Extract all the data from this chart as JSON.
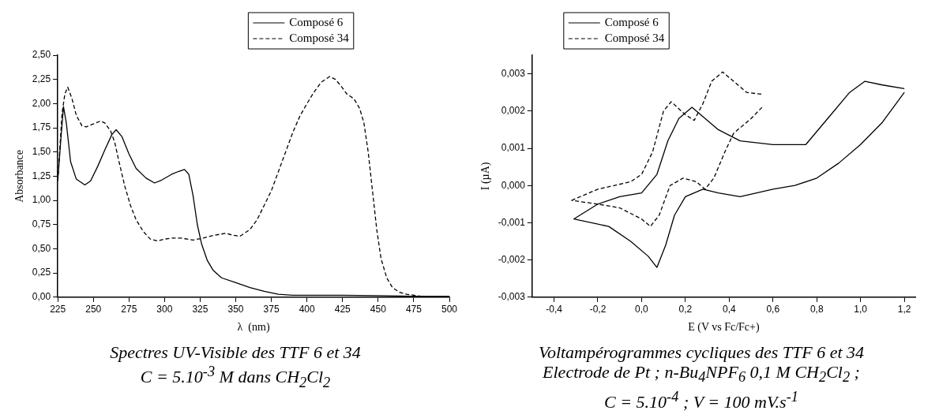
{
  "chart_data": [
    {
      "type": "line",
      "xlabel": "λ  (nm)",
      "ylabel": "Absorbance",
      "xlim": [
        225,
        500
      ],
      "ylim": [
        0,
        2.5
      ],
      "xticks": [
        225,
        250,
        275,
        300,
        325,
        350,
        375,
        400,
        425,
        450,
        475,
        500
      ],
      "yticks": [
        {
          "value": 0,
          "label": "0,00"
        },
        {
          "value": 0.25,
          "label": "0,25"
        },
        {
          "value": 0.5,
          "label": "0,50"
        },
        {
          "value": 0.75,
          "label": "0,75"
        },
        {
          "value": 1,
          "label": "1,00"
        },
        {
          "value": 1.25,
          "label": "1,25"
        },
        {
          "value": 1.5,
          "label": "1,50"
        },
        {
          "value": 1.75,
          "label": "1,75"
        },
        {
          "value": 2,
          "label": "2,00"
        },
        {
          "value": 2.25,
          "label": "2,25"
        },
        {
          "value": 2.5,
          "label": "2,50"
        }
      ],
      "grid": false,
      "legend": "top",
      "marker": "none",
      "annotations": [
        "Spectres UV-Visible des TTF 6 et 34",
        "C = 5.10$^{-3}$ M dans CH$_{2}$Cl$_{2}$"
      ],
      "series": [
        {
          "name": "Composé 6",
          "color": "#000000",
          "line_style": "solid",
          "x": [
            225,
            227,
            229,
            231,
            234,
            238,
            244,
            248,
            253,
            258,
            263,
            266,
            270,
            275,
            280,
            287,
            293,
            298,
            305,
            310,
            314,
            317,
            320,
            323,
            326,
            330,
            334,
            340,
            350,
            360,
            370,
            380,
            390,
            400,
            425,
            450,
            475,
            500
          ],
          "values": [
            1.2,
            1.6,
            1.97,
            1.8,
            1.4,
            1.22,
            1.16,
            1.2,
            1.35,
            1.52,
            1.68,
            1.73,
            1.66,
            1.48,
            1.33,
            1.23,
            1.18,
            1.21,
            1.27,
            1.3,
            1.32,
            1.27,
            1.05,
            0.75,
            0.55,
            0.38,
            0.28,
            0.2,
            0.15,
            0.1,
            0.06,
            0.03,
            0.02,
            0.02,
            0.02,
            0.015,
            0.01,
            0.01
          ]
        },
        {
          "name": "Composé 34",
          "color": "#000000",
          "line_style": "dashed",
          "x": [
            225,
            228,
            230,
            232,
            235,
            238,
            242,
            245,
            250,
            255,
            258,
            262,
            265,
            268,
            272,
            276,
            280,
            285,
            290,
            295,
            300,
            305,
            312,
            320,
            327,
            335,
            343,
            348,
            353,
            360,
            365,
            370,
            375,
            380,
            385,
            390,
            395,
            400,
            405,
            410,
            416,
            420,
            424,
            428,
            433,
            437,
            440,
            443,
            446,
            449,
            452,
            456,
            460,
            465,
            470,
            480,
            490,
            500
          ],
          "values": [
            1.2,
            1.9,
            2.1,
            2.17,
            2.05,
            1.88,
            1.77,
            1.76,
            1.79,
            1.82,
            1.8,
            1.72,
            1.6,
            1.4,
            1.15,
            0.95,
            0.8,
            0.68,
            0.6,
            0.58,
            0.6,
            0.61,
            0.61,
            0.59,
            0.61,
            0.64,
            0.66,
            0.64,
            0.63,
            0.7,
            0.8,
            0.95,
            1.1,
            1.3,
            1.5,
            1.7,
            1.87,
            2.0,
            2.12,
            2.22,
            2.28,
            2.25,
            2.18,
            2.1,
            2.05,
            1.95,
            1.8,
            1.5,
            1.1,
            0.7,
            0.4,
            0.2,
            0.1,
            0.05,
            0.03,
            0.01,
            0.0,
            0.0
          ]
        }
      ]
    },
    {
      "type": "line",
      "xlabel": "E (V vs Fc/Fc+)",
      "ylabel": "I (µA)",
      "xlim": [
        -0.5,
        1.25
      ],
      "ylim": [
        -0.003,
        0.0035
      ],
      "xticks": [
        {
          "value": -0.4,
          "label": "-0,4"
        },
        {
          "value": -0.2,
          "label": "-0,2"
        },
        {
          "value": 0,
          "label": "0,0"
        },
        {
          "value": 0.2,
          "label": "0,2"
        },
        {
          "value": 0.4,
          "label": "0,4"
        },
        {
          "value": 0.6,
          "label": "0,6"
        },
        {
          "value": 0.8,
          "label": "0,8"
        },
        {
          "value": 1,
          "label": "1,0"
        },
        {
          "value": 1.2,
          "label": "1,2"
        }
      ],
      "yticks": [
        {
          "value": -0.003,
          "label": "-0,003"
        },
        {
          "value": -0.002,
          "label": "-0,002"
        },
        {
          "value": -0.001,
          "label": "-0,001"
        },
        {
          "value": 0,
          "label": "0,000"
        },
        {
          "value": 0.001,
          "label": "0,001"
        },
        {
          "value": 0.002,
          "label": "0,002"
        },
        {
          "value": 0.003,
          "label": "0,003"
        }
      ],
      "grid": false,
      "legend": "top left",
      "marker": "none",
      "annotations": [
        "Voltampérogrammes cycliques des TTF 6 et 34",
        "Electrode de Pt ; n-Bu$_{4}$NPF$_{6}$ 0,1 M CH$_{2}$Cl$_{2}$ ;",
        "C = 5.10$^{-4}$ ; V = 100 mV.s$^{-1}$"
      ],
      "series": [
        {
          "name": "Composé 6",
          "color": "#000000",
          "line_style": "solid",
          "x": [
            -0.31,
            -0.2,
            -0.1,
            0.0,
            0.07,
            0.12,
            0.17,
            0.23,
            0.27,
            0.35,
            0.45,
            0.6,
            0.75,
            0.85,
            0.95,
            1.02,
            1.1,
            1.2
          ],
          "values": [
            -0.0009,
            -0.0005,
            -0.0003,
            -0.0002,
            0.0003,
            0.0012,
            0.0018,
            0.0021,
            0.0019,
            0.0015,
            0.0012,
            0.0011,
            0.0011,
            0.0018,
            0.0025,
            0.0028,
            0.0027,
            0.0026
          ]
        },
        {
          "color": "#000000",
          "line_style": "solid",
          "x": [
            1.2,
            1.1,
            1.0,
            0.9,
            0.8,
            0.7,
            0.6,
            0.45,
            0.35,
            0.28,
            0.2,
            0.15,
            0.11,
            0.07,
            0.03,
            -0.05,
            -0.15,
            -0.31
          ],
          "values": [
            0.0025,
            0.0017,
            0.0011,
            0.0006,
            0.0002,
            0.0,
            -0.0001,
            -0.0003,
            -0.0002,
            -0.0001,
            -0.0003,
            -0.0008,
            -0.0016,
            -0.0022,
            -0.0019,
            -0.0015,
            -0.0011,
            -0.0009
          ]
        },
        {
          "name": "Composé 34",
          "color": "#000000",
          "line_style": "dashed",
          "x": [
            -0.32,
            -0.2,
            -0.05,
            0.0,
            0.05,
            0.1,
            0.135,
            0.2,
            0.24,
            0.28,
            0.32,
            0.37,
            0.42,
            0.48,
            0.55
          ],
          "values": [
            -0.0004,
            -0.0001,
            0.0001,
            0.0003,
            0.0009,
            0.002,
            0.00225,
            0.0019,
            0.00175,
            0.0022,
            0.0028,
            0.00305,
            0.0028,
            0.0025,
            0.00245
          ]
        },
        {
          "color": "#000000",
          "line_style": "dashed",
          "x": [
            0.55,
            0.5,
            0.42,
            0.38,
            0.33,
            0.29,
            0.25,
            0.19,
            0.13,
            0.08,
            0.04,
            0.0,
            -0.1,
            -0.2,
            -0.32
          ],
          "values": [
            0.0021,
            0.0018,
            0.0014,
            0.0009,
            0.0002,
            -0.0001,
            0.0001,
            0.0002,
            0.0,
            -0.0008,
            -0.0011,
            -0.0009,
            -0.0006,
            -0.0005,
            -0.0004
          ]
        }
      ]
    }
  ]
}
